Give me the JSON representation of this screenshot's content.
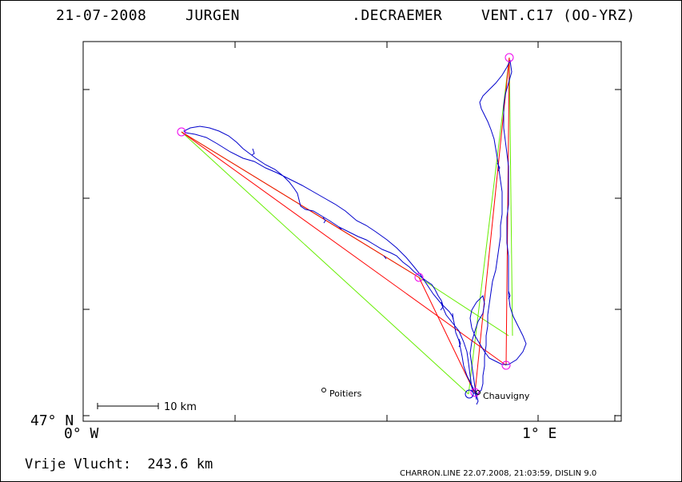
{
  "header": {
    "date": "21-07-2008",
    "pilot_first": "JURGEN",
    "pilot_last": ".DECRAEMER",
    "glider": "VENT.C17 (OO-YRZ)"
  },
  "axes": {
    "lat_label": "47° N",
    "lon_left_label": "0° W",
    "lon_right_label": "1° E"
  },
  "places": [
    {
      "name": "Poitiers"
    },
    {
      "name": "Chauvigny"
    }
  ],
  "scale": {
    "label": "10 km"
  },
  "footer": {
    "label": "Vrije Vlucht:",
    "distance": "243.6 km",
    "credits": "CHARRON.LINE 22.07.2008, 21:03:59, DISLIN 9.0"
  },
  "colors": {
    "track": "#0000cc",
    "task_red": "#ff0000",
    "task_green": "#66ee00",
    "turnpoint": "#ee00ee",
    "frame": "#000000"
  },
  "icons": {
    "turnpoint": "circle-marker-icon",
    "place": "small-circle-icon"
  }
}
